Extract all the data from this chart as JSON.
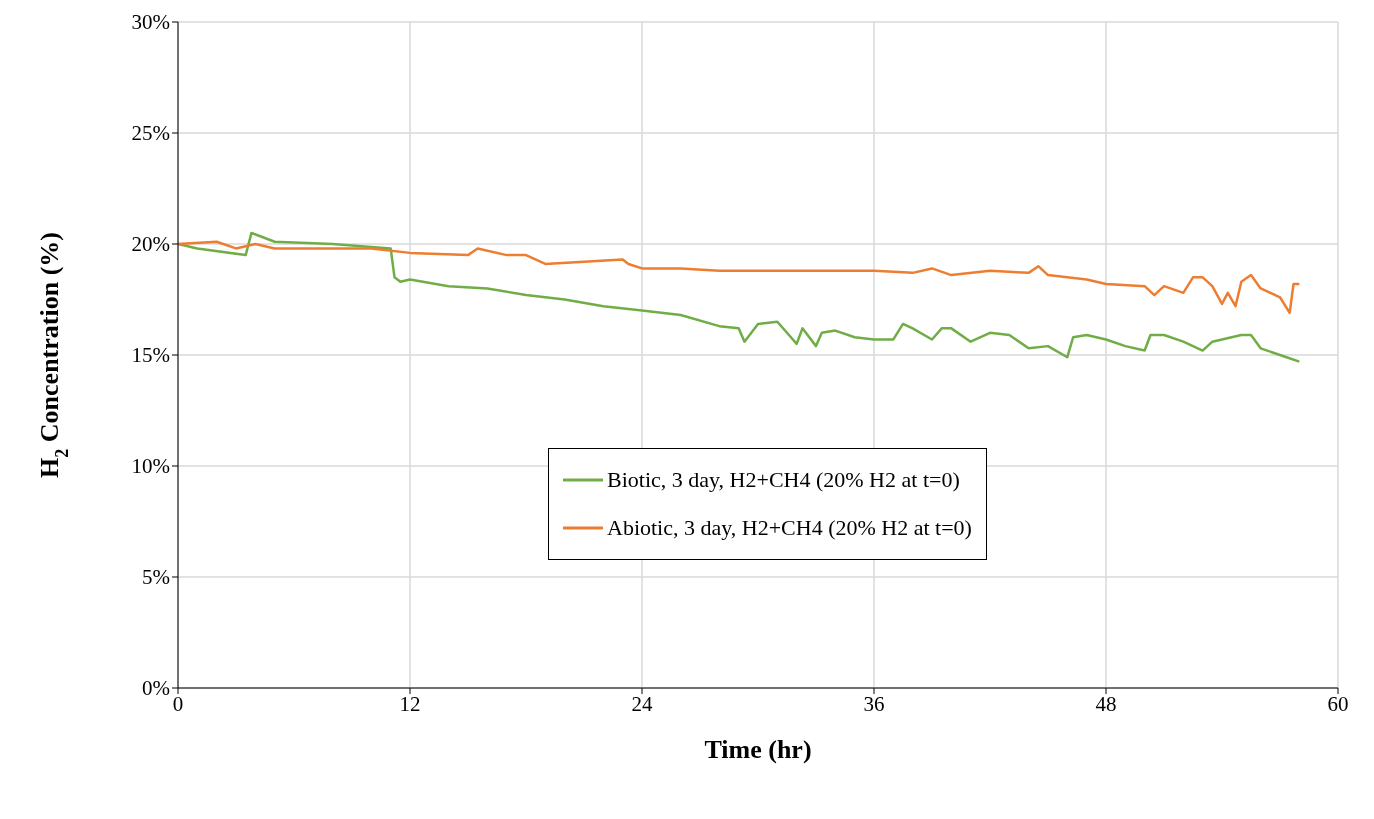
{
  "chart_data": {
    "type": "line",
    "xlabel": "Time (hr)",
    "ylabel": "H$_{2}$ Concentration (%)",
    "xlim": [
      0,
      60
    ],
    "xticks": [
      0,
      12,
      24,
      36,
      48,
      60
    ],
    "ylim": [
      0,
      30
    ],
    "yticks": [
      {
        "value": 0,
        "label": "0%"
      },
      {
        "value": 5,
        "label": "5%"
      },
      {
        "value": 10,
        "label": "10%"
      },
      {
        "value": 15,
        "label": "15%"
      },
      {
        "value": 20,
        "label": "20%"
      },
      {
        "value": 25,
        "label": "25%"
      },
      {
        "value": 30,
        "label": "30%"
      }
    ],
    "grid": true,
    "legend": "bottom right",
    "marker": "none",
    "line_style": "solid",
    "series": [
      {
        "name": "Biotic, 3 day, H2+CH4 (20% H2 at t=0)",
        "color": "#70ad47",
        "x": [
          0,
          1,
          3.5,
          3.8,
          5,
          8,
          11,
          11.2,
          11.5,
          12,
          14,
          16,
          18,
          20,
          22,
          24,
          26,
          28,
          29,
          29.3,
          30,
          31,
          31.5,
          32,
          32.3,
          33,
          33.3,
          34,
          35,
          36,
          37,
          37.5,
          38,
          39,
          39.5,
          40,
          41,
          42,
          43,
          44,
          45,
          46,
          46.3,
          47,
          48,
          49,
          50,
          50.3,
          51,
          52,
          53,
          53.5,
          54,
          55,
          55.5,
          56,
          57,
          58
        ],
        "values": [
          20.0,
          19.8,
          19.5,
          20.5,
          20.1,
          20.0,
          19.8,
          18.5,
          18.3,
          18.4,
          18.1,
          18.0,
          17.7,
          17.5,
          17.2,
          17.0,
          16.8,
          16.3,
          16.2,
          15.6,
          16.4,
          16.5,
          16.0,
          15.5,
          16.2,
          15.4,
          16.0,
          16.1,
          15.8,
          15.7,
          15.7,
          16.4,
          16.2,
          15.7,
          16.2,
          16.2,
          15.6,
          16.0,
          15.9,
          15.3,
          15.4,
          14.9,
          15.8,
          15.9,
          15.7,
          15.4,
          15.2,
          15.9,
          15.9,
          15.6,
          15.2,
          15.6,
          15.7,
          15.9,
          15.9,
          15.3,
          15.0,
          14.7
        ]
      },
      {
        "name": "Abiotic, 3 day, H2+CH4 (20% H2 at t=0)",
        "color": "#ed7d31",
        "x": [
          0,
          2,
          3,
          4,
          5,
          8,
          10,
          12,
          15,
          15.5,
          17,
          18,
          19,
          21,
          23,
          23.3,
          24,
          26,
          28,
          30,
          32,
          34,
          36,
          38,
          39,
          40,
          42,
          44,
          44.5,
          45,
          47,
          48,
          50,
          50.5,
          51,
          52,
          52.5,
          53,
          53.5,
          54,
          54.3,
          54.7,
          55,
          55.5,
          56,
          57,
          57.5,
          57.7,
          58
        ],
        "values": [
          20.0,
          20.1,
          19.8,
          20.0,
          19.8,
          19.8,
          19.8,
          19.6,
          19.5,
          19.8,
          19.5,
          19.5,
          19.1,
          19.2,
          19.3,
          19.1,
          18.9,
          18.9,
          18.8,
          18.8,
          18.8,
          18.8,
          18.8,
          18.7,
          18.9,
          18.6,
          18.8,
          18.7,
          19.0,
          18.6,
          18.4,
          18.2,
          18.1,
          17.7,
          18.1,
          17.8,
          18.5,
          18.5,
          18.1,
          17.3,
          17.8,
          17.2,
          18.3,
          18.6,
          18.0,
          17.6,
          16.9,
          18.2,
          18.2
        ]
      }
    ]
  }
}
